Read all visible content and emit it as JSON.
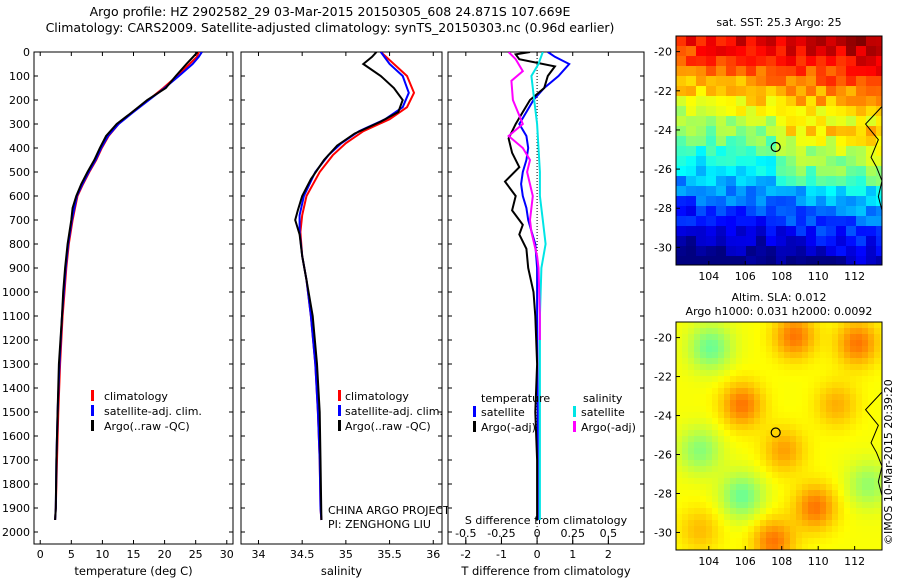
{
  "header": {
    "line1": "Argo profile: HZ 2902582_29 03-Mar-2015 20150305_608 24.871S 107.669E",
    "line2": "Climatology: CARS2009. Satellite-adjusted climatology: synTS_20150303.nc (0.96d earlier)"
  },
  "credit": "©IMOS 10-Mar-2015 20:39:20",
  "colors": {
    "climatology": "#ff0000",
    "satellite": "#0000ff",
    "argo": "#000000",
    "sal_sat": "#00e5e5",
    "sal_argo": "#ff00ff"
  },
  "chart_data": [
    {
      "id": "temp",
      "type": "line",
      "xlabel": "temperature (deg C)",
      "ylabel": "",
      "xlim": [
        -1,
        31
      ],
      "ylim": [
        2050,
        0
      ],
      "y_reversed": true,
      "xticks": [
        0,
        5,
        10,
        15,
        20,
        25,
        30
      ],
      "yticks": [
        0,
        100,
        200,
        300,
        400,
        500,
        600,
        700,
        800,
        900,
        1000,
        1100,
        1200,
        1300,
        1400,
        1500,
        1600,
        1700,
        1800,
        1900,
        2000
      ],
      "legend": [
        "climatology",
        "satellite-adj. clim.",
        "Argo(..raw -QC)"
      ],
      "series": [
        {
          "name": "climatology",
          "color": "#ff0000",
          "x": [
            25.5,
            25.2,
            24.0,
            22.0,
            19.8,
            17.4,
            14.8,
            12.6,
            11.0,
            9.9,
            9.0,
            7.9,
            6.9,
            6.0,
            5.6,
            5.2,
            4.6,
            4.2,
            3.9,
            3.6,
            3.2,
            2.9,
            2.7,
            2.5,
            2.4
          ],
          "y": [
            0,
            20,
            50,
            100,
            150,
            200,
            250,
            300,
            350,
            400,
            450,
            500,
            550,
            600,
            650,
            700,
            800,
            900,
            1000,
            1100,
            1300,
            1500,
            1700,
            1900,
            1950
          ]
        },
        {
          "name": "satellite-adj. clim.",
          "color": "#0000ff",
          "x": [
            26.0,
            25.5,
            24.5,
            22.3,
            20.0,
            17.5,
            15.0,
            12.6,
            10.9,
            9.8,
            8.9,
            7.8,
            6.8,
            5.9,
            5.5,
            5.1,
            4.5,
            4.1,
            3.8,
            3.5,
            3.1,
            2.8,
            2.6,
            2.5,
            2.4
          ],
          "y": [
            0,
            20,
            50,
            100,
            150,
            200,
            250,
            300,
            350,
            400,
            450,
            500,
            550,
            600,
            650,
            700,
            800,
            900,
            1000,
            1100,
            1300,
            1500,
            1700,
            1900,
            1950
          ]
        },
        {
          "name": "Argo(..raw -QC)",
          "color": "#000000",
          "x": [
            25.3,
            24.6,
            23.5,
            21.8,
            20.2,
            17.2,
            14.8,
            12.3,
            10.6,
            9.6,
            8.7,
            7.6,
            6.6,
            5.8,
            5.2,
            5.0,
            4.4,
            4.0,
            3.7,
            3.5,
            3.0,
            2.8,
            2.6,
            2.5,
            2.4
          ],
          "y": [
            0,
            20,
            50,
            100,
            150,
            200,
            250,
            300,
            350,
            400,
            450,
            500,
            550,
            600,
            650,
            700,
            800,
            900,
            1000,
            1100,
            1300,
            1500,
            1700,
            1900,
            1950
          ]
        }
      ]
    },
    {
      "id": "sal",
      "type": "line",
      "xlabel": "salinity",
      "ylabel": "",
      "xlim": [
        33.8,
        36.1
      ],
      "ylim": [
        2050,
        0
      ],
      "y_reversed": true,
      "xticks": [
        34,
        34.5,
        35,
        35.5,
        36
      ],
      "legend": [
        "climatology",
        "satellite-adj. clim.",
        "Argo(..raw -QC)"
      ],
      "annotation": [
        "CHINA ARGO PROJECT",
        "PI: ZENGHONG LIU"
      ],
      "series": [
        {
          "name": "climatology",
          "color": "#ff0000",
          "x": [
            35.4,
            35.55,
            35.7,
            35.78,
            35.7,
            35.5,
            35.2,
            35.0,
            34.85,
            34.7,
            34.55,
            34.5,
            34.48,
            34.5,
            34.55,
            34.6,
            34.65,
            34.68,
            34.7,
            34.71,
            34.72
          ],
          "y": [
            0,
            50,
            100,
            170,
            230,
            280,
            330,
            380,
            430,
            500,
            600,
            680,
            750,
            850,
            950,
            1100,
            1300,
            1500,
            1700,
            1900,
            1950
          ]
        },
        {
          "name": "satellite-adj. clim.",
          "color": "#0000ff",
          "x": [
            35.4,
            35.5,
            35.65,
            35.72,
            35.65,
            35.45,
            35.15,
            34.95,
            34.8,
            34.65,
            34.52,
            34.47,
            34.47,
            34.5,
            34.55,
            34.6,
            34.65,
            34.68,
            34.7,
            34.71,
            34.72
          ],
          "y": [
            0,
            50,
            100,
            170,
            230,
            280,
            330,
            380,
            430,
            500,
            600,
            680,
            750,
            850,
            950,
            1100,
            1300,
            1500,
            1700,
            1900,
            1950
          ]
        },
        {
          "name": "Argo(..raw -QC)",
          "color": "#000000",
          "x": [
            35.35,
            35.3,
            35.2,
            35.4,
            35.55,
            35.65,
            35.6,
            35.4,
            35.1,
            34.9,
            34.75,
            34.6,
            34.5,
            34.45,
            34.42,
            34.47,
            34.5,
            34.55,
            34.62,
            34.67,
            34.7,
            34.71,
            34.72
          ],
          "y": [
            0,
            20,
            50,
            100,
            150,
            200,
            250,
            290,
            340,
            390,
            450,
            530,
            600,
            660,
            700,
            760,
            850,
            950,
            1100,
            1300,
            1500,
            1700,
            1950
          ]
        }
      ]
    },
    {
      "id": "diff",
      "type": "line",
      "xlabel": "T difference from climatology",
      "toplabel": "S difference from climatology",
      "xlim": [
        -2.5,
        3.0
      ],
      "ylim": [
        2050,
        0
      ],
      "y_reversed": true,
      "xticks": [
        -2,
        -1,
        0,
        1,
        2
      ],
      "sticks": [
        -0.5,
        -0.25,
        0,
        0.25,
        0.5
      ],
      "slabels": [
        "-0.5",
        "-0.25",
        "0",
        "0.25",
        "0.5"
      ],
      "legend": {
        "left_head": "temperature",
        "right_head": "salinity",
        "items": [
          "satellite",
          "Argo(-adj)",
          "satellite",
          "Argo(-adj)"
        ]
      },
      "series": [
        {
          "name": "T satellite",
          "color": "#0000ff",
          "x": [
            0.3,
            0.5,
            0.9,
            0.6,
            0.2,
            -0.1,
            -0.3,
            -0.5,
            -0.3,
            -0.25,
            -0.3,
            -0.4,
            -0.45,
            -0.4,
            -0.3,
            -0.25,
            -0.15,
            -0.05,
            0,
            0,
            0.02,
            0.02
          ],
          "y": [
            0,
            20,
            50,
            100,
            150,
            200,
            250,
            300,
            350,
            400,
            450,
            500,
            550,
            600,
            650,
            700,
            750,
            800,
            900,
            1100,
            1500,
            1950
          ]
        },
        {
          "name": "T Argo",
          "color": "#000000",
          "x": [
            -0.2,
            -0.6,
            -0.5,
            0.5,
            0.3,
            0.2,
            -0.2,
            -0.4,
            -0.6,
            -0.8,
            -0.7,
            -0.5,
            -0.9,
            -0.6,
            -0.7,
            -0.4,
            -0.5,
            -0.3,
            -0.25,
            -0.1,
            -0.05,
            0,
            -0.05,
            0,
            0
          ],
          "y": [
            0,
            10,
            30,
            60,
            100,
            150,
            200,
            250,
            300,
            360,
            420,
            480,
            540,
            600,
            660,
            720,
            760,
            820,
            900,
            1000,
            1100,
            1300,
            1500,
            1700,
            1950
          ]
        },
        {
          "name": "S satellite",
          "color": "#00e5e5",
          "x": [
            0.04,
            0.01,
            -0.04,
            -0.03,
            -0.02,
            0,
            0.01,
            0.02,
            0.02,
            0.04,
            0.06,
            0.03,
            0.02,
            0.02,
            0.02
          ],
          "y": [
            0,
            50,
            100,
            150,
            200,
            300,
            400,
            500,
            600,
            700,
            800,
            900,
            1100,
            1500,
            1950
          ]
        },
        {
          "name": "S Argo",
          "color": "#ff00ff",
          "x": [
            -0.2,
            -0.15,
            -0.1,
            -0.18,
            -0.17,
            -0.1,
            -0.2,
            -0.1,
            -0.05,
            -0.07,
            -0.03,
            -0.05,
            -0.04,
            0,
            0.01,
            0.02,
            0.02
          ],
          "y": [
            0,
            30,
            80,
            120,
            200,
            300,
            350,
            400,
            450,
            500,
            600,
            700,
            750,
            850,
            900,
            1100,
            1200
          ]
        }
      ]
    },
    {
      "id": "sst",
      "type": "heatmap",
      "title": "sat. SST: 25.3 Argo: 25",
      "xlim": [
        102.2,
        113.5
      ],
      "ylim": [
        -30.9,
        -19.2
      ],
      "xticks": [
        104,
        106,
        108,
        110,
        112
      ],
      "yticks": [
        -20,
        -22,
        -24,
        -26,
        -28,
        -30
      ],
      "marker": {
        "lon": 107.669,
        "lat": -24.871
      }
    },
    {
      "id": "sla",
      "type": "heatmap",
      "title": "Altim. SLA: 0.012",
      "subtitle": "Argo h1000: 0.031 h2000: 0.0092",
      "xlim": [
        102.2,
        113.5
      ],
      "ylim": [
        -30.9,
        -19.2
      ],
      "xticks": [
        104,
        106,
        108,
        110,
        112
      ],
      "yticks": [
        -20,
        -22,
        -24,
        -26,
        -28,
        -30
      ],
      "marker": {
        "lon": 107.669,
        "lat": -24.871
      }
    }
  ]
}
